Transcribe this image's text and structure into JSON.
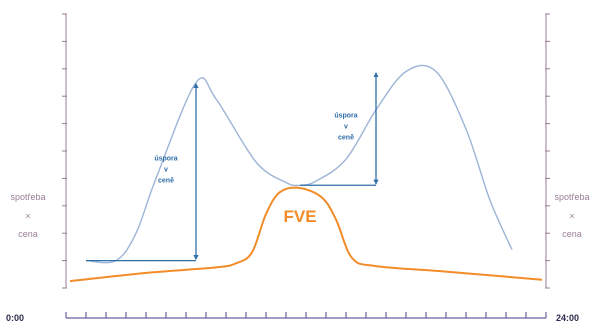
{
  "chart_data": {
    "type": "line",
    "xlabel": "",
    "ylabel": "",
    "side_label_left": [
      "spotřeba",
      "×",
      "cena"
    ],
    "side_label_right": [
      "spotřeba",
      "×",
      "cena"
    ],
    "x_tick_labels": {
      "start": "0:00",
      "end": "24:00"
    },
    "xlim": [
      0,
      24
    ],
    "ylim": [
      0,
      10
    ],
    "grid": false,
    "colors": {
      "consumption": "#9db4d6",
      "fve": "#f28c28",
      "savings": "#2f6fa8",
      "axis": "#9a7d95",
      "x_axis": "#6b5fa0"
    },
    "series": [
      {
        "key": "consumption",
        "x": [
          1,
          2.5,
          3.5,
          4.5,
          6.5,
          7.5,
          9.5,
          11,
          11.7,
          12.5,
          14,
          15.5,
          17,
          18.5,
          20,
          21.2,
          22.3
        ],
        "y": [
          1,
          1,
          2,
          4,
          7.5,
          6.9,
          4.6,
          3.85,
          3.75,
          3.9,
          4.7,
          6.5,
          7.9,
          7.9,
          5.8,
          3.2,
          1.4
        ]
      },
      {
        "key": "fve",
        "name": "FVE",
        "x": [
          0.2,
          4,
          7.5,
          8.5,
          9.3,
          10,
          10.7,
          11.7,
          12.8,
          13.5,
          14.3,
          15.5,
          19,
          23.8
        ],
        "y": [
          0.25,
          0.55,
          0.75,
          0.9,
          1.3,
          2.7,
          3.5,
          3.65,
          3.3,
          2.5,
          1.1,
          0.8,
          0.6,
          0.3
        ]
      }
    ],
    "annotations": [
      {
        "text": [
          "úspora",
          "v",
          "ceně"
        ],
        "x": 6.5,
        "y_top": 7.5,
        "y_bottom": 1,
        "baseline_from": 1,
        "baseline_to": 6.5
      },
      {
        "text": [
          "úspora",
          "v",
          "ceně"
        ],
        "x": 15.5,
        "y_top": 7.9,
        "y_bottom": 3.75,
        "baseline_from": 11.7,
        "baseline_to": 15.5
      }
    ],
    "y_ticks": 11,
    "x_ticks": 24
  }
}
